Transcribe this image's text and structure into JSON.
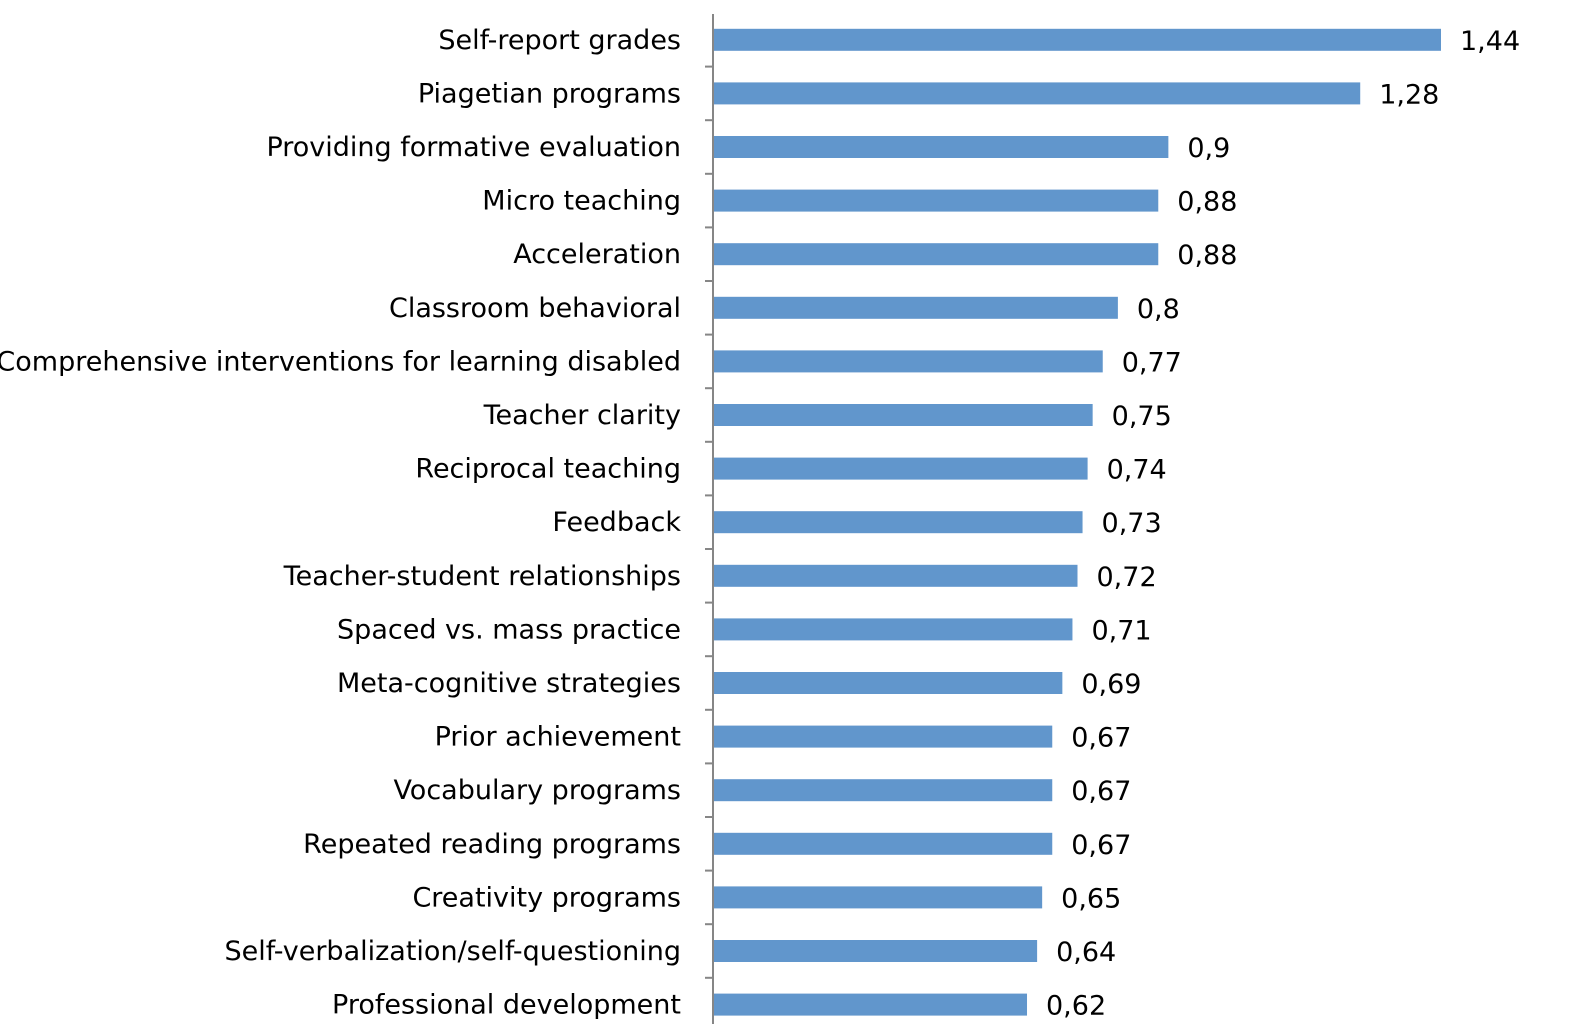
{
  "chart_data": {
    "type": "bar",
    "orientation": "horizontal",
    "categories": [
      "Self-report grades",
      "Piagetian programs",
      "Providing formative evaluation",
      "Micro teaching",
      "Acceleration",
      "Classroom behavioral",
      "Comprehensive interventions for learning disabled",
      "Teacher clarity",
      "Reciprocal teaching",
      "Feedback",
      "Teacher-student relationships",
      "Spaced vs. mass practice",
      "Meta-cognitive strategies",
      "Prior achievement",
      "Vocabulary programs",
      "Repeated reading programs",
      "Creativity programs",
      "Self-verbalization/self-questioning",
      "Professional development"
    ],
    "values": [
      1.44,
      1.28,
      0.9,
      0.88,
      0.88,
      0.8,
      0.77,
      0.75,
      0.74,
      0.73,
      0.72,
      0.71,
      0.69,
      0.67,
      0.67,
      0.67,
      0.65,
      0.64,
      0.62
    ],
    "value_labels": [
      "1,44",
      "1,28",
      "0,9",
      "0,88",
      "0,88",
      "0,8",
      "0,77",
      "0,75",
      "0,74",
      "0,73",
      "0,72",
      "0,71",
      "0,69",
      "0,67",
      "0,67",
      "0,67",
      "0,65",
      "0,64",
      "0,62"
    ],
    "xlim": [
      0,
      1.6
    ],
    "grid": false,
    "legend": "none",
    "bar_color": "#6196cc",
    "axis_color": "#868686",
    "title": "",
    "xlabel": "",
    "ylabel": ""
  }
}
